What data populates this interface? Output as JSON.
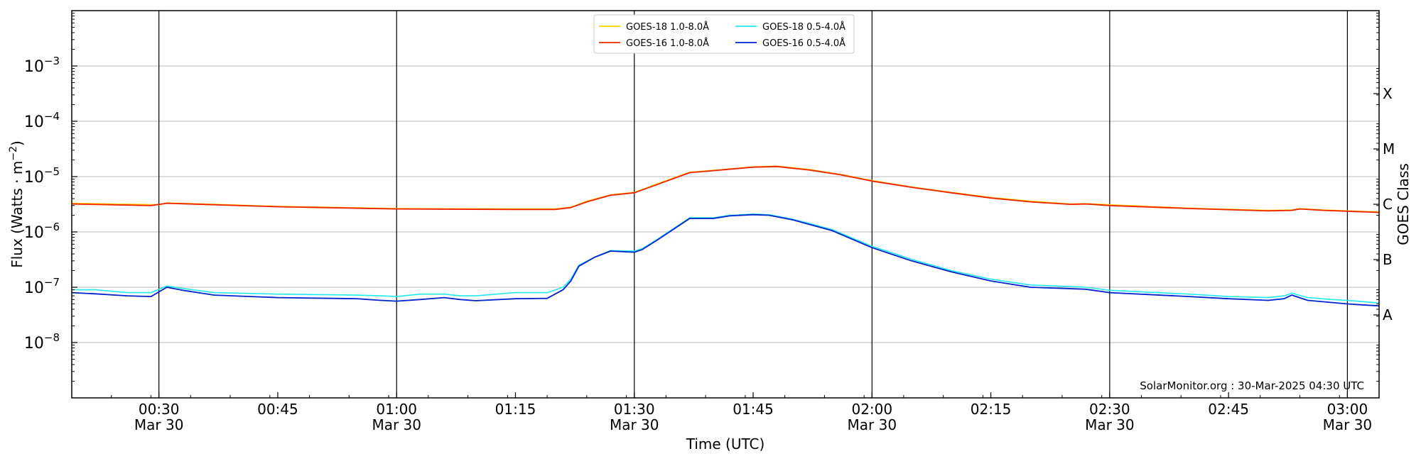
{
  "chart_data": {
    "type": "line",
    "title": "",
    "xlabel": "Time (UTC)",
    "ylabel_main": "Flux (Watts · m",
    "ylabel_sup": "−2",
    "ylabel_close": ")",
    "ylabel_right": "GOES Class",
    "y_scale": "log",
    "ylim": [
      1e-09,
      0.01
    ],
    "xlim": [
      "00:19",
      "03:04"
    ],
    "grid": "horizontal at decades",
    "legend_position": "top-center",
    "credit": "SolarMonitor.org : 30-Mar-2025 04:30 UTC",
    "y_ticks": [
      {
        "value": 1e-08,
        "base": "10",
        "exp": "−8"
      },
      {
        "value": 1e-07,
        "base": "10",
        "exp": "−7"
      },
      {
        "value": 1e-06,
        "base": "10",
        "exp": "−6"
      },
      {
        "value": 1e-05,
        "base": "10",
        "exp": "−5"
      },
      {
        "value": 0.0001,
        "base": "10",
        "exp": "−4"
      },
      {
        "value": 0.001,
        "base": "10",
        "exp": "−3"
      }
    ],
    "x_ticks": [
      {
        "time": "00:30",
        "label": "00:30",
        "date": "Mar 30",
        "vline": true
      },
      {
        "time": "00:45",
        "label": "00:45",
        "date": "",
        "vline": false
      },
      {
        "time": "01:00",
        "label": "01:00",
        "date": "Mar 30",
        "vline": true
      },
      {
        "time": "01:15",
        "label": "01:15",
        "date": "",
        "vline": false
      },
      {
        "time": "01:30",
        "label": "01:30",
        "date": "Mar 30",
        "vline": true
      },
      {
        "time": "01:45",
        "label": "01:45",
        "date": "",
        "vline": false
      },
      {
        "time": "02:00",
        "label": "02:00",
        "date": "Mar 30",
        "vline": true
      },
      {
        "time": "02:15",
        "label": "02:15",
        "date": "",
        "vline": false
      },
      {
        "time": "02:30",
        "label": "02:30",
        "date": "Mar 30",
        "vline": true
      },
      {
        "time": "02:45",
        "label": "02:45",
        "date": "",
        "vline": false
      },
      {
        "time": "03:00",
        "label": "03:00",
        "date": "Mar 30",
        "vline": true
      }
    ],
    "goes_classes": [
      {
        "label": "X",
        "value": 0.000316
      },
      {
        "label": "M",
        "value": 3.16e-05
      },
      {
        "label": "C",
        "value": 3.16e-06
      },
      {
        "label": "B",
        "value": 3.16e-07
      },
      {
        "label": "A",
        "value": 3.16e-08
      }
    ],
    "series": [
      {
        "name": "GOES-18 1.0-8.0Å",
        "color": "#ffd700",
        "width": 1.6,
        "points": [
          [
            "00:19",
            3.3e-06
          ],
          [
            "00:30",
            3.1e-06
          ],
          [
            "00:31",
            3.35e-06
          ],
          [
            "00:45",
            2.9e-06
          ],
          [
            "01:00",
            2.65e-06
          ],
          [
            "01:15",
            2.6e-06
          ],
          [
            "01:20",
            2.6e-06
          ],
          [
            "01:22",
            2.8e-06
          ],
          [
            "01:24",
            3.6e-06
          ],
          [
            "01:27",
            4.7e-06
          ],
          [
            "01:30",
            5.2e-06
          ],
          [
            "01:33",
            7.5e-06
          ],
          [
            "01:37",
            1.2e-05
          ],
          [
            "01:40",
            1.3e-05
          ],
          [
            "01:45",
            1.5e-05
          ],
          [
            "01:48",
            1.55e-05
          ],
          [
            "01:52",
            1.35e-05
          ],
          [
            "01:56",
            1.1e-05
          ],
          [
            "02:00",
            8.5e-06
          ],
          [
            "02:05",
            6.5e-06
          ],
          [
            "02:10",
            5.2e-06
          ],
          [
            "02:15",
            4.2e-06
          ],
          [
            "02:20",
            3.6e-06
          ],
          [
            "02:25",
            3.2e-06
          ],
          [
            "02:27",
            3.25e-06
          ],
          [
            "02:30",
            3.1e-06
          ],
          [
            "02:40",
            2.7e-06
          ],
          [
            "02:50",
            2.45e-06
          ],
          [
            "02:53",
            2.5e-06
          ],
          [
            "02:54",
            2.65e-06
          ],
          [
            "02:57",
            2.5e-06
          ],
          [
            "03:04",
            2.3e-06
          ]
        ]
      },
      {
        "name": "GOES-16 1.0-8.0Å",
        "color": "#ee2200",
        "width": 1.8,
        "points": [
          [
            "00:19",
            3.2e-06
          ],
          [
            "00:29",
            3e-06
          ],
          [
            "00:31",
            3.3e-06
          ],
          [
            "00:45",
            2.85e-06
          ],
          [
            "01:00",
            2.6e-06
          ],
          [
            "01:15",
            2.55e-06
          ],
          [
            "01:20",
            2.55e-06
          ],
          [
            "01:22",
            2.75e-06
          ],
          [
            "01:24",
            3.5e-06
          ],
          [
            "01:27",
            4.6e-06
          ],
          [
            "01:30",
            5.1e-06
          ],
          [
            "01:33",
            7.3e-06
          ],
          [
            "01:37",
            1.18e-05
          ],
          [
            "01:40",
            1.28e-05
          ],
          [
            "01:45",
            1.48e-05
          ],
          [
            "01:48",
            1.52e-05
          ],
          [
            "01:52",
            1.32e-05
          ],
          [
            "01:56",
            1.08e-05
          ],
          [
            "02:00",
            8.3e-06
          ],
          [
            "02:05",
            6.4e-06
          ],
          [
            "02:10",
            5.1e-06
          ],
          [
            "02:15",
            4.1e-06
          ],
          [
            "02:20",
            3.5e-06
          ],
          [
            "02:25",
            3.15e-06
          ],
          [
            "02:27",
            3.2e-06
          ],
          [
            "02:30",
            3e-06
          ],
          [
            "02:40",
            2.65e-06
          ],
          [
            "02:50",
            2.4e-06
          ],
          [
            "02:53",
            2.45e-06
          ],
          [
            "02:54",
            2.6e-06
          ],
          [
            "02:57",
            2.45e-06
          ],
          [
            "03:04",
            2.25e-06
          ]
        ]
      },
      {
        "name": "GOES-18 0.5-4.0Å",
        "color": "#22e8f0",
        "width": 1.6,
        "points": [
          [
            "00:19",
            9e-08
          ],
          [
            "00:22",
            9e-08
          ],
          [
            "00:26",
            8e-08
          ],
          [
            "00:29",
            8e-08
          ],
          [
            "00:31",
            1.05e-07
          ],
          [
            "00:33",
            9.5e-08
          ],
          [
            "00:37",
            8e-08
          ],
          [
            "00:45",
            7.5e-08
          ],
          [
            "00:55",
            7.2e-08
          ],
          [
            "00:58",
            7e-08
          ],
          [
            "01:00",
            6.8e-08
          ],
          [
            "01:03",
            7.5e-08
          ],
          [
            "01:06",
            7.5e-08
          ],
          [
            "01:08",
            7e-08
          ],
          [
            "01:10",
            7e-08
          ],
          [
            "01:15",
            8e-08
          ],
          [
            "01:19",
            8e-08
          ],
          [
            "01:21",
            1e-07
          ],
          [
            "01:22",
            1.4e-07
          ],
          [
            "01:23",
            2.5e-07
          ],
          [
            "01:25",
            3.5e-07
          ],
          [
            "01:27",
            4.6e-07
          ],
          [
            "01:30",
            4.5e-07
          ],
          [
            "01:31",
            5e-07
          ],
          [
            "01:33",
            7.5e-07
          ],
          [
            "01:37",
            1.8e-06
          ],
          [
            "01:40",
            1.8e-06
          ],
          [
            "01:42",
            2e-06
          ],
          [
            "01:45",
            2.1e-06
          ],
          [
            "01:47",
            2.05e-06
          ],
          [
            "01:50",
            1.7e-06
          ],
          [
            "01:55",
            1.1e-06
          ],
          [
            "02:00",
            5.5e-07
          ],
          [
            "02:05",
            3.2e-07
          ],
          [
            "02:10",
            2e-07
          ],
          [
            "02:15",
            1.4e-07
          ],
          [
            "02:20",
            1.1e-07
          ],
          [
            "02:27",
            1e-07
          ],
          [
            "02:30",
            8.8e-08
          ],
          [
            "02:40",
            7.5e-08
          ],
          [
            "02:45",
            6.8e-08
          ],
          [
            "02:50",
            6.5e-08
          ],
          [
            "02:52",
            7e-08
          ],
          [
            "02:53",
            7.8e-08
          ],
          [
            "02:55",
            6.5e-08
          ],
          [
            "02:58",
            6e-08
          ],
          [
            "03:00",
            5.8e-08
          ],
          [
            "03:04",
            5.2e-08
          ]
        ]
      },
      {
        "name": "GOES-16 0.5-4.0Å",
        "color": "#0022cc",
        "width": 1.8,
        "points": [
          [
            "00:19",
            8e-08
          ],
          [
            "00:22",
            7.6e-08
          ],
          [
            "00:26",
            7e-08
          ],
          [
            "00:29",
            6.8e-08
          ],
          [
            "00:31",
            1e-07
          ],
          [
            "00:33",
            8.8e-08
          ],
          [
            "00:37",
            7.2e-08
          ],
          [
            "00:45",
            6.5e-08
          ],
          [
            "00:55",
            6.2e-08
          ],
          [
            "00:58",
            5.8e-08
          ],
          [
            "01:00",
            5.6e-08
          ],
          [
            "01:03",
            6e-08
          ],
          [
            "01:06",
            6.5e-08
          ],
          [
            "01:08",
            6e-08
          ],
          [
            "01:10",
            5.7e-08
          ],
          [
            "01:15",
            6.2e-08
          ],
          [
            "01:19",
            6.3e-08
          ],
          [
            "01:21",
            9e-08
          ],
          [
            "01:22",
            1.3e-07
          ],
          [
            "01:23",
            2.4e-07
          ],
          [
            "01:25",
            3.5e-07
          ],
          [
            "01:27",
            4.5e-07
          ],
          [
            "01:30",
            4.3e-07
          ],
          [
            "01:31",
            4.8e-07
          ],
          [
            "01:33",
            7.3e-07
          ],
          [
            "01:37",
            1.75e-06
          ],
          [
            "01:40",
            1.75e-06
          ],
          [
            "01:42",
            1.95e-06
          ],
          [
            "01:45",
            2.05e-06
          ],
          [
            "01:47",
            2e-06
          ],
          [
            "01:50",
            1.65e-06
          ],
          [
            "01:55",
            1.05e-06
          ],
          [
            "02:00",
            5.2e-07
          ],
          [
            "02:05",
            3e-07
          ],
          [
            "02:10",
            1.9e-07
          ],
          [
            "02:15",
            1.3e-07
          ],
          [
            "02:20",
            1e-07
          ],
          [
            "02:27",
            9.2e-08
          ],
          [
            "02:30",
            8e-08
          ],
          [
            "02:40",
            6.8e-08
          ],
          [
            "02:45",
            6.2e-08
          ],
          [
            "02:50",
            5.8e-08
          ],
          [
            "02:52",
            6.2e-08
          ],
          [
            "02:53",
            7.2e-08
          ],
          [
            "02:55",
            5.8e-08
          ],
          [
            "02:58",
            5.3e-08
          ],
          [
            "03:00",
            5e-08
          ],
          [
            "03:04",
            4.6e-08
          ]
        ]
      }
    ],
    "legend": [
      {
        "name": "GOES-18 1.0-8.0Å",
        "color": "#ffd700"
      },
      {
        "name": "GOES-16 1.0-8.0Å",
        "color": "#ee2200"
      },
      {
        "name": "GOES-18 0.5-4.0Å",
        "color": "#22e8f0"
      },
      {
        "name": "GOES-16 0.5-4.0Å",
        "color": "#0022cc"
      }
    ]
  }
}
